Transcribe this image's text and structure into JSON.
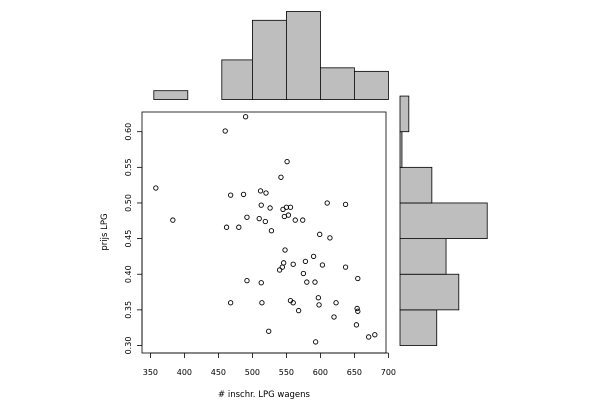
{
  "chart_data": [
    {
      "type": "scatter",
      "xlabel": "# inschr. LPG wagens",
      "ylabel": "prijs LPG",
      "xlim": [
        345,
        700
      ],
      "ylim": [
        0.3,
        0.63
      ],
      "xticks": [
        "350",
        "400",
        "450",
        "500",
        "550",
        "600",
        "650",
        "700"
      ],
      "yticks": [
        "0.30",
        "0.35",
        "0.40",
        "0.45",
        "0.50",
        "0.55",
        "0.60"
      ],
      "points": [
        {
          "x": 358,
          "y": 0.521
        },
        {
          "x": 383,
          "y": 0.476
        },
        {
          "x": 460,
          "y": 0.601
        },
        {
          "x": 490,
          "y": 0.621
        },
        {
          "x": 462,
          "y": 0.466
        },
        {
          "x": 468,
          "y": 0.511
        },
        {
          "x": 480,
          "y": 0.466
        },
        {
          "x": 487,
          "y": 0.512
        },
        {
          "x": 492,
          "y": 0.48
        },
        {
          "x": 510,
          "y": 0.478
        },
        {
          "x": 512,
          "y": 0.517
        },
        {
          "x": 513,
          "y": 0.497
        },
        {
          "x": 519,
          "y": 0.474
        },
        {
          "x": 520,
          "y": 0.514
        },
        {
          "x": 526,
          "y": 0.493
        },
        {
          "x": 528,
          "y": 0.461
        },
        {
          "x": 542,
          "y": 0.536
        },
        {
          "x": 545,
          "y": 0.491
        },
        {
          "x": 547,
          "y": 0.481
        },
        {
          "x": 550,
          "y": 0.494
        },
        {
          "x": 551,
          "y": 0.558
        },
        {
          "x": 553,
          "y": 0.483
        },
        {
          "x": 556,
          "y": 0.494
        },
        {
          "x": 563,
          "y": 0.476
        },
        {
          "x": 574,
          "y": 0.476
        },
        {
          "x": 599,
          "y": 0.456
        },
        {
          "x": 610,
          "y": 0.5
        },
        {
          "x": 614,
          "y": 0.451
        },
        {
          "x": 637,
          "y": 0.498
        },
        {
          "x": 548,
          "y": 0.434
        },
        {
          "x": 560,
          "y": 0.414
        },
        {
          "x": 546,
          "y": 0.416
        },
        {
          "x": 544,
          "y": 0.41
        },
        {
          "x": 540,
          "y": 0.406
        },
        {
          "x": 578,
          "y": 0.418
        },
        {
          "x": 590,
          "y": 0.425
        },
        {
          "x": 575,
          "y": 0.401
        },
        {
          "x": 580,
          "y": 0.389
        },
        {
          "x": 592,
          "y": 0.389
        },
        {
          "x": 603,
          "y": 0.413
        },
        {
          "x": 637,
          "y": 0.41
        },
        {
          "x": 655,
          "y": 0.394
        },
        {
          "x": 492,
          "y": 0.391
        },
        {
          "x": 513,
          "y": 0.388
        },
        {
          "x": 468,
          "y": 0.36
        },
        {
          "x": 514,
          "y": 0.36
        },
        {
          "x": 556,
          "y": 0.363
        },
        {
          "x": 560,
          "y": 0.36
        },
        {
          "x": 568,
          "y": 0.349
        },
        {
          "x": 597,
          "y": 0.367
        },
        {
          "x": 598,
          "y": 0.357
        },
        {
          "x": 623,
          "y": 0.36
        },
        {
          "x": 620,
          "y": 0.34
        },
        {
          "x": 654,
          "y": 0.352
        },
        {
          "x": 655,
          "y": 0.348
        },
        {
          "x": 653,
          "y": 0.329
        },
        {
          "x": 524,
          "y": 0.32
        },
        {
          "x": 593,
          "y": 0.305
        },
        {
          "x": 671,
          "y": 0.312
        },
        {
          "x": 680,
          "y": 0.315
        }
      ]
    },
    {
      "type": "bar",
      "orientation": "vertical",
      "description_of": "marginal histogram of # inschr. LPG wagens",
      "bins": [
        {
          "from": 355,
          "to": 405,
          "value": 1
        },
        {
          "from": 405,
          "to": 455,
          "value": 0
        },
        {
          "from": 455,
          "to": 500,
          "value": 4.5
        },
        {
          "from": 500,
          "to": 550,
          "value": 9
        },
        {
          "from": 550,
          "to": 600,
          "value": 10
        },
        {
          "from": 600,
          "to": 650,
          "value": 3.6
        },
        {
          "from": 650,
          "to": 700,
          "value": 3.2
        }
      ]
    },
    {
      "type": "bar",
      "orientation": "horizontal",
      "description_of": "marginal histogram of prijs LPG",
      "bins": [
        {
          "from": 0.3,
          "to": 0.35,
          "value": 7.5
        },
        {
          "from": 0.35,
          "to": 0.4,
          "value": 12
        },
        {
          "from": 0.4,
          "to": 0.45,
          "value": 9.4
        },
        {
          "from": 0.45,
          "to": 0.5,
          "value": 17.8
        },
        {
          "from": 0.5,
          "to": 0.55,
          "value": 6.5
        },
        {
          "from": 0.55,
          "to": 0.6,
          "value": 0.4
        },
        {
          "from": 0.6,
          "to": 0.65,
          "value": 1.8
        }
      ]
    }
  ]
}
